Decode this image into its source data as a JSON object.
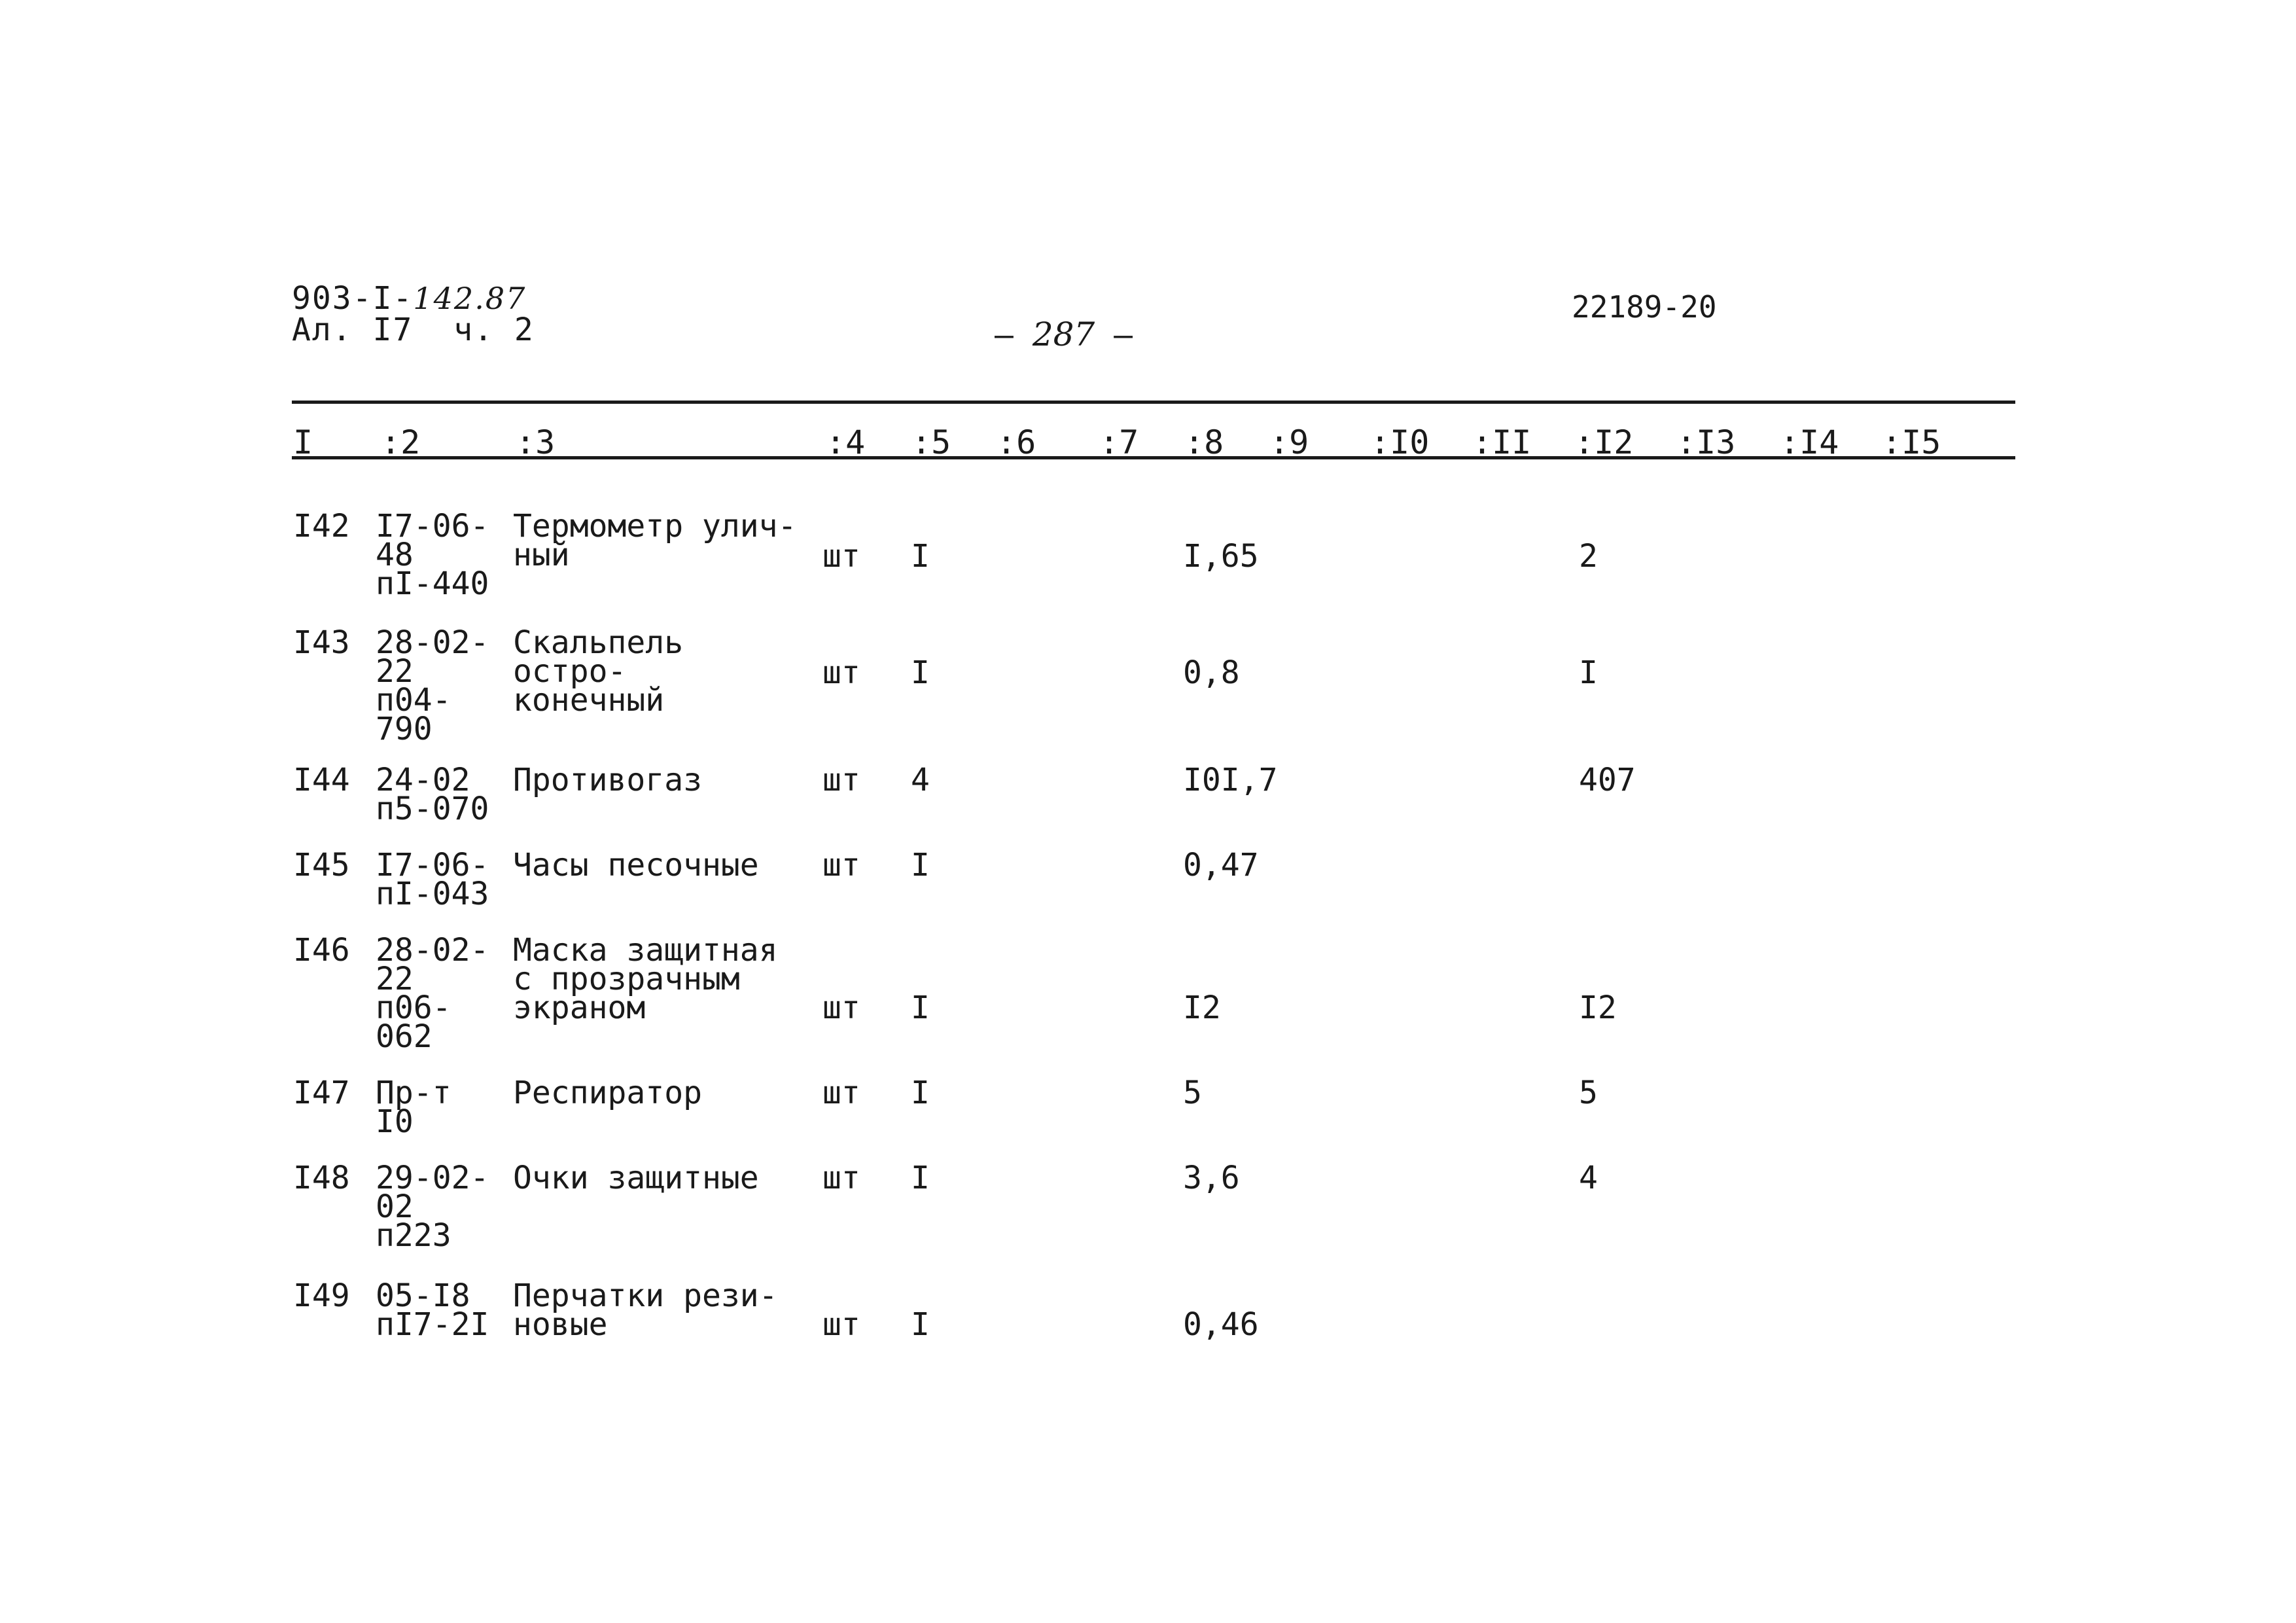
{
  "header": {
    "doc_code_printed": "903-I-",
    "doc_code_handwritten": "142.87",
    "album": "Ал. I7  ч. 2",
    "page_prefix": "–",
    "page_number": "287",
    "page_suffix": "–",
    "inventory_number": "22189-20"
  },
  "table": {
    "columns": [
      "I",
      ":2",
      ":3",
      ":4",
      ":5",
      ":6",
      ":7",
      ":8",
      ":9",
      ":I0",
      ":II",
      ":I2",
      ":I3",
      ":I4",
      ":I5"
    ],
    "rows": [
      {
        "n": "I42",
        "code": "I7-06-\n48\nпI-440",
        "name": "Термометр улич-\nный",
        "unit": "шт",
        "qty": "I",
        "price": "I,65",
        "c12": "2"
      },
      {
        "n": "I43",
        "code": "28-02-\n22\nп04-\n790",
        "name": "Скальпель остро-\nконечный",
        "unit": "шт",
        "qty": "I",
        "price": "0,8",
        "c12": "I"
      },
      {
        "n": "I44",
        "code": "24-02\nп5-070",
        "name": "Противогаз",
        "unit": "шт",
        "qty": "4",
        "price": "I0I,7",
        "c12": "407"
      },
      {
        "n": "I45",
        "code": "I7-06-\nпI-043",
        "name": "Часы песочные",
        "unit": "шт",
        "qty": "I",
        "price": "0,47",
        "c12": ""
      },
      {
        "n": "I46",
        "code": "28-02-\n22\nп06-\n062",
        "name": "Маска защитная\nс прозрачным\nэкраном",
        "unit": "шт",
        "qty": "I",
        "price": "I2",
        "c12": "I2"
      },
      {
        "n": "I47",
        "code": "Пр-т\nI0",
        "name": "Респиратор",
        "unit": "шт",
        "qty": "I",
        "price": "5",
        "c12": "5"
      },
      {
        "n": "I48",
        "code": "29-02-\n02\nп223",
        "name": "Очки защитные",
        "unit": "шт",
        "qty": "I",
        "price": "3,6",
        "c12": "4"
      },
      {
        "n": "I49",
        "code": "05-I8\nпI7-2I",
        "name": "Перчатки рези-\nновые",
        "unit": "шт",
        "qty": "I",
        "price": "0,46",
        "c12": ""
      }
    ]
  }
}
